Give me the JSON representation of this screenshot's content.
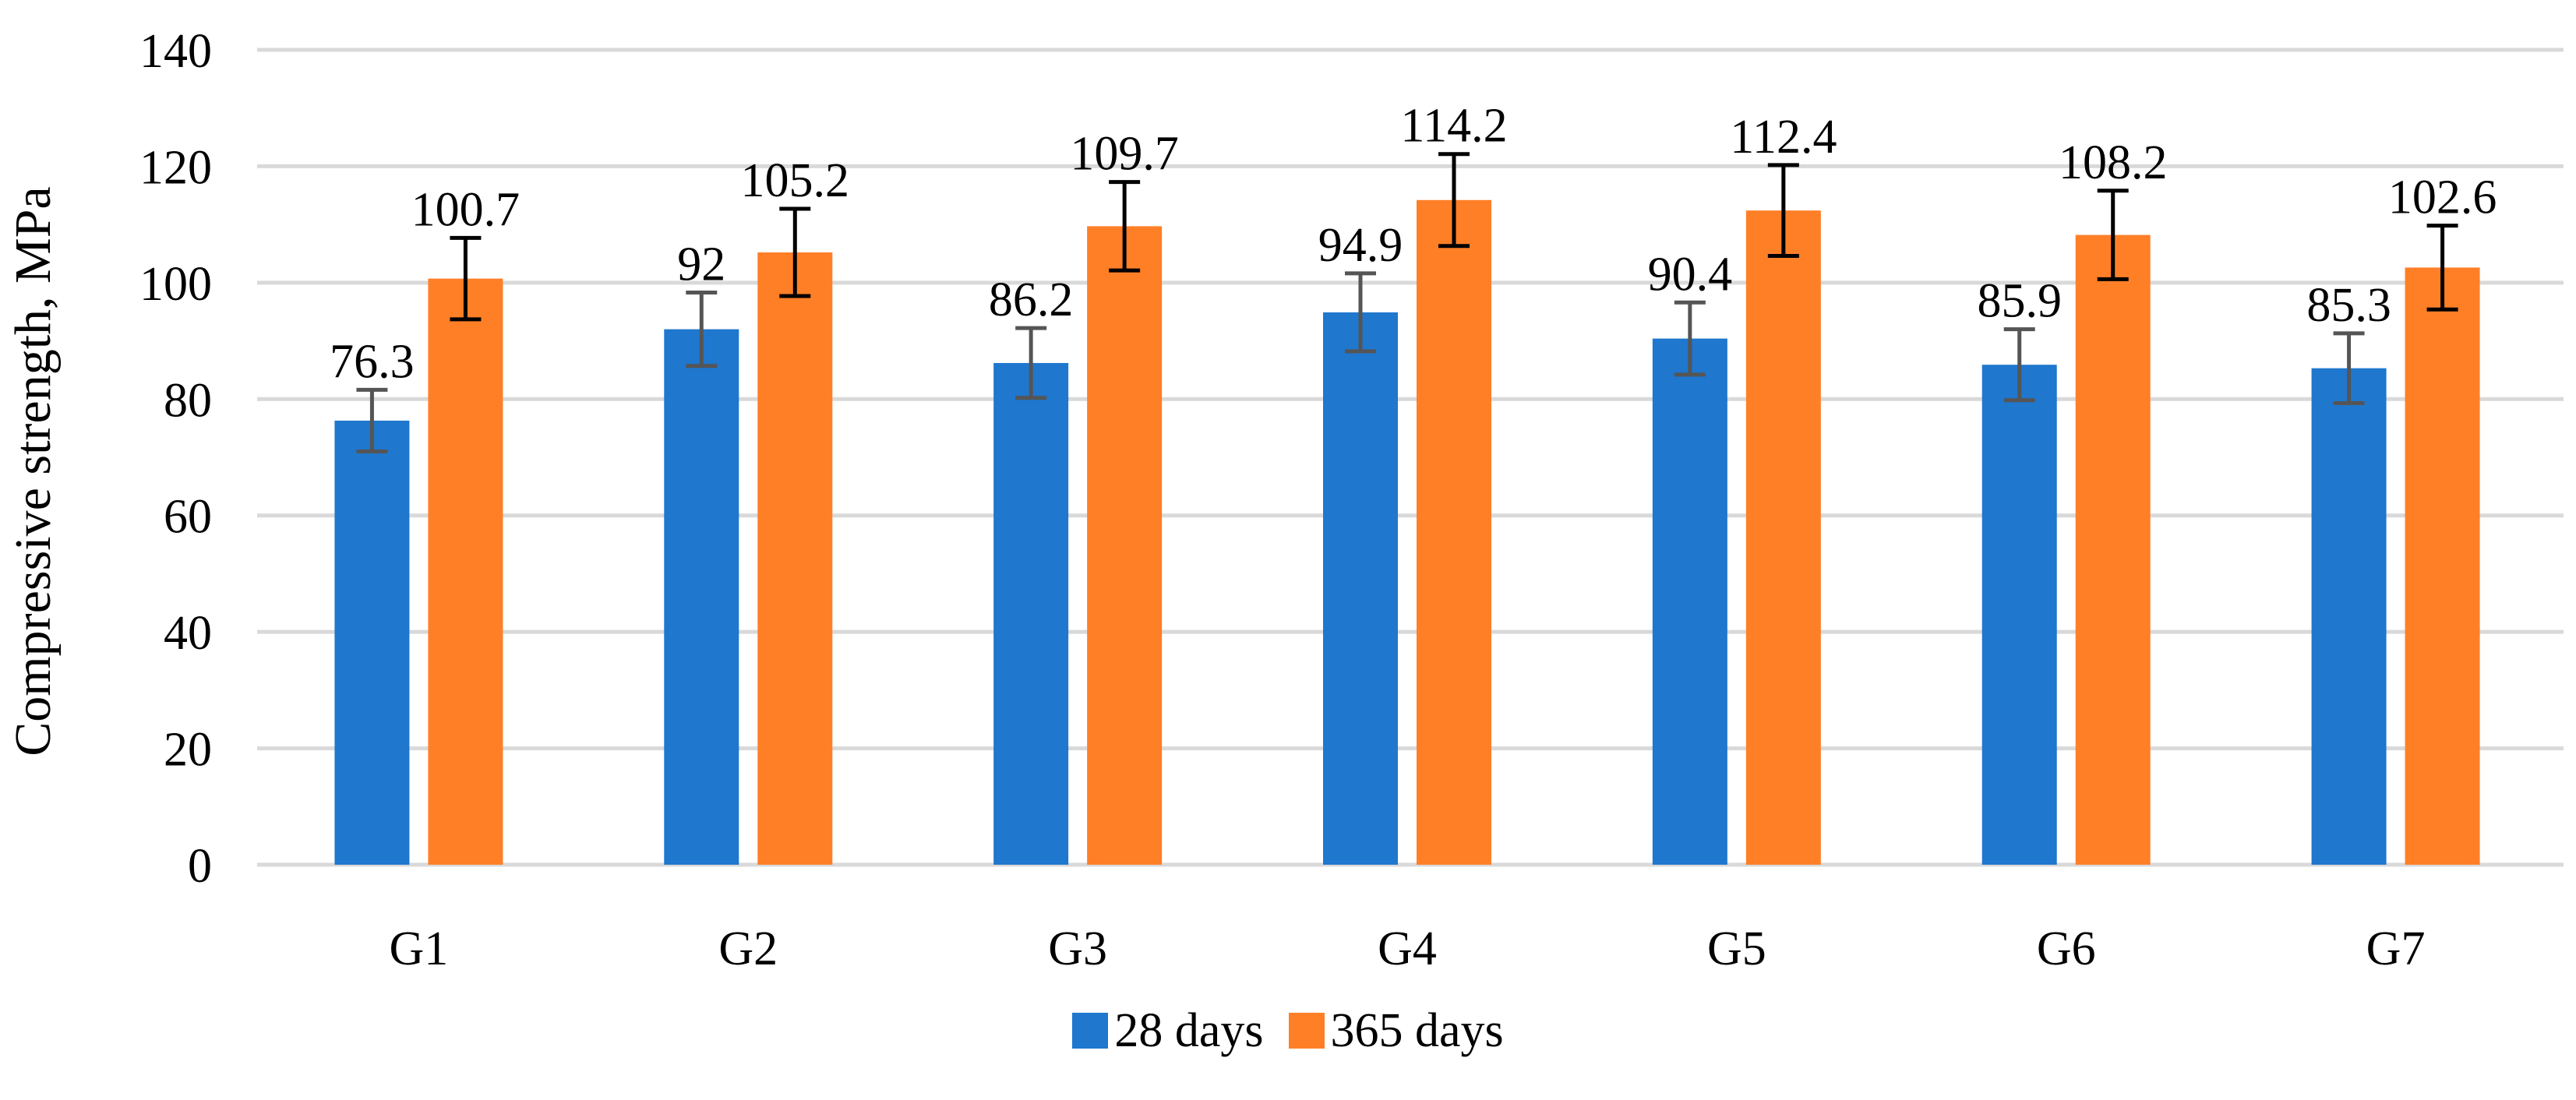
{
  "chart_data": {
    "type": "bar",
    "title": "",
    "xlabel": "",
    "ylabel": "Compressive strength, MPa",
    "ylim": [
      0,
      140
    ],
    "yticks": [
      0,
      20,
      40,
      60,
      80,
      100,
      120,
      140
    ],
    "grid": true,
    "legend_position": "bottom-center",
    "categories": [
      "G1",
      "G2",
      "G3",
      "G4",
      "G5",
      "G6",
      "G7"
    ],
    "series": [
      {
        "name": "28 days",
        "color": "#1F77CE",
        "errorbar_color": "#555555",
        "values": [
          76.3,
          92,
          86.2,
          94.9,
          90.4,
          85.9,
          85.3
        ],
        "labels": [
          "76.3",
          "92",
          "86.2",
          "94.9",
          "90.4",
          "85.9",
          "85.3"
        ],
        "error": [
          5.3,
          6.3,
          6.0,
          6.7,
          6.2,
          6.1,
          6.0
        ]
      },
      {
        "name": "365 days",
        "color": "#FF7F27",
        "errorbar_color": "#000000",
        "values": [
          100.7,
          105.2,
          109.7,
          114.2,
          112.4,
          108.2,
          102.6
        ],
        "labels": [
          "100.7",
          "105.2",
          "109.7",
          "114.2",
          "112.4",
          "108.2",
          "102.6"
        ],
        "error": [
          7.0,
          7.5,
          7.6,
          7.9,
          7.8,
          7.6,
          7.2
        ]
      }
    ]
  }
}
